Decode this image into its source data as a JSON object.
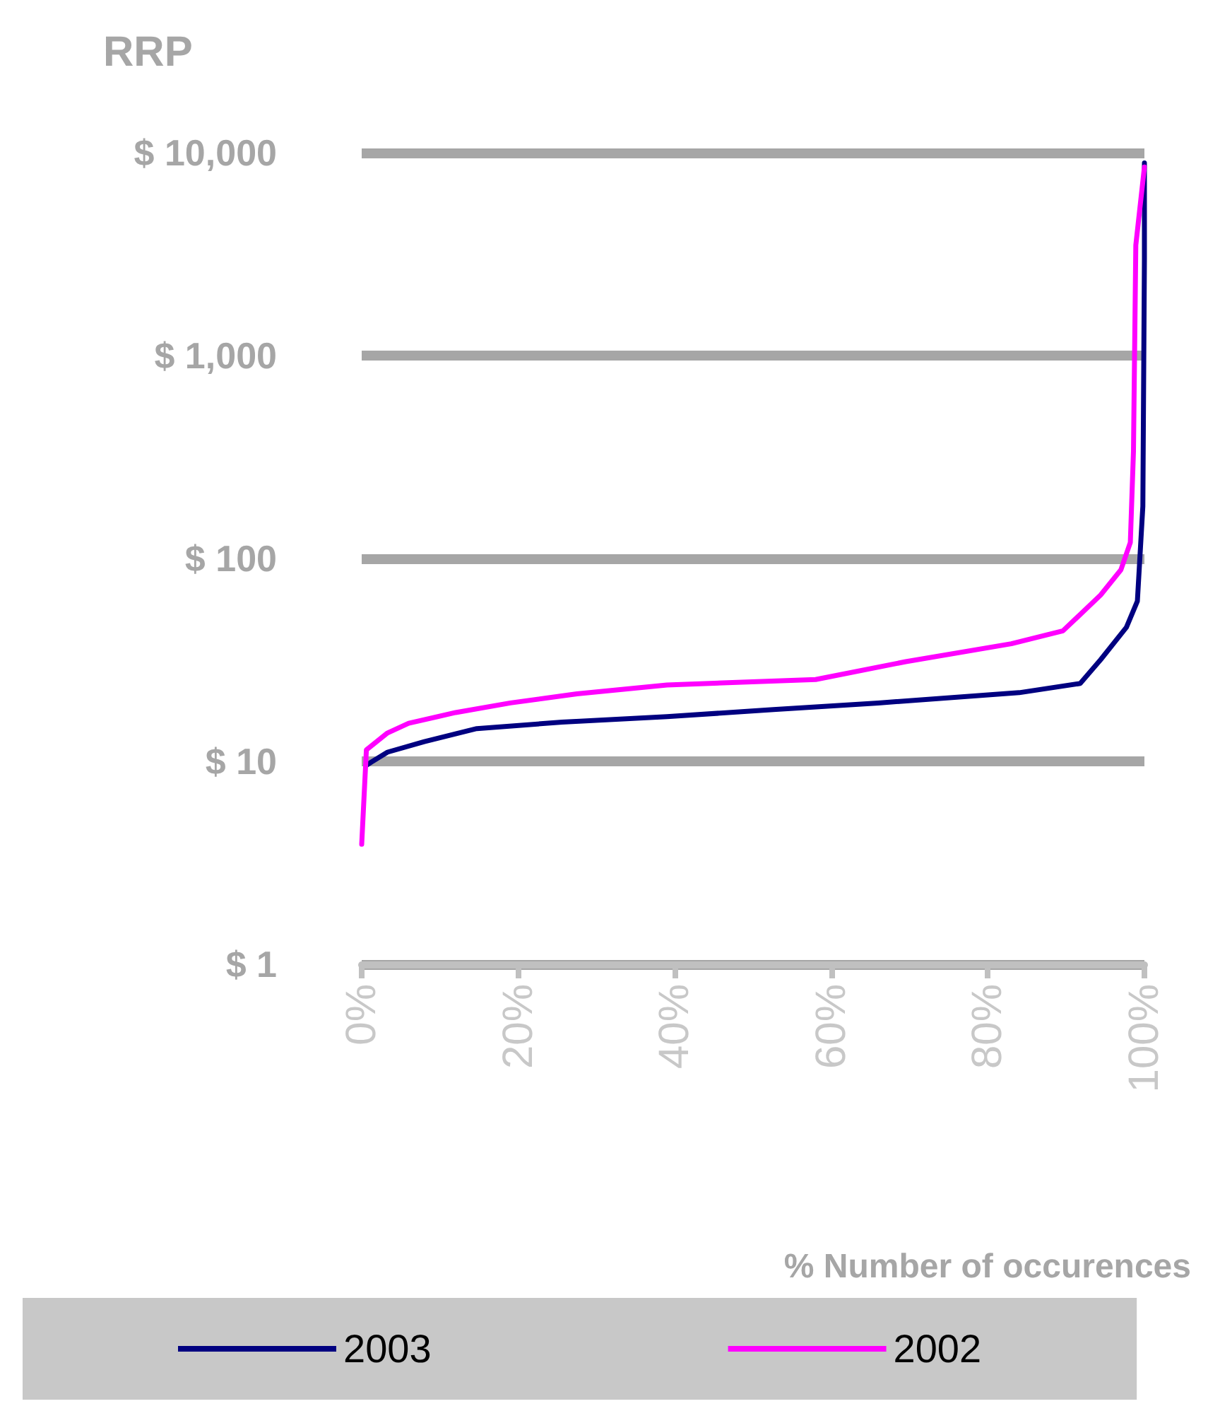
{
  "chart_data": {
    "type": "line",
    "ylabel": "RRP",
    "xlabel": "% Number of occurences",
    "xlim": [
      0,
      100
    ],
    "xticks": [
      {
        "value": 0,
        "label": "0%"
      },
      {
        "value": 20,
        "label": "20%"
      },
      {
        "value": 40,
        "label": "40%"
      },
      {
        "value": 60,
        "label": "60%"
      },
      {
        "value": 80,
        "label": "80%"
      },
      {
        "value": 100,
        "label": "100%"
      }
    ],
    "ylim": [
      1,
      10000
    ],
    "yticks": [
      {
        "value": 1,
        "label": "$ 1"
      },
      {
        "value": 10,
        "label": "$ 10"
      },
      {
        "value": 100,
        "label": "$ 100"
      },
      {
        "value": 1000,
        "label": "$ 1,000"
      },
      {
        "value": 10000,
        "label": "$ 10,000"
      }
    ],
    "log": "y",
    "grid": "y",
    "legend": "bottom",
    "marker": "none",
    "line_style": "solid",
    "series": [
      {
        "name": "2003",
        "color": "#000080",
        "x": [
          0.5,
          1.2,
          3.3,
          8,
          14.7,
          25.6,
          39,
          52.6,
          66,
          84,
          91.8,
          94.4,
          97.7,
          99.1,
          99.8,
          100,
          100
        ],
        "values": [
          9.5,
          9.9,
          11.1,
          12.5,
          14.5,
          15.6,
          16.6,
          18,
          19.4,
          21.8,
          24.2,
          31.7,
          45.8,
          61.6,
          181,
          3000,
          8900
        ]
      },
      {
        "name": "2002",
        "color": "#ff00ff",
        "x": [
          0,
          0.6,
          3.3,
          6,
          12,
          19,
          27.5,
          39,
          58,
          69.5,
          83,
          89.6,
          94.4,
          97,
          98.2,
          98.6,
          98.9,
          100
        ],
        "values": [
          3.9,
          11.4,
          13.8,
          15.4,
          17.4,
          19.4,
          21.5,
          23.8,
          25.3,
          31,
          38,
          44,
          66,
          88,
          120,
          337,
          3500,
          8500
        ]
      }
    ]
  }
}
